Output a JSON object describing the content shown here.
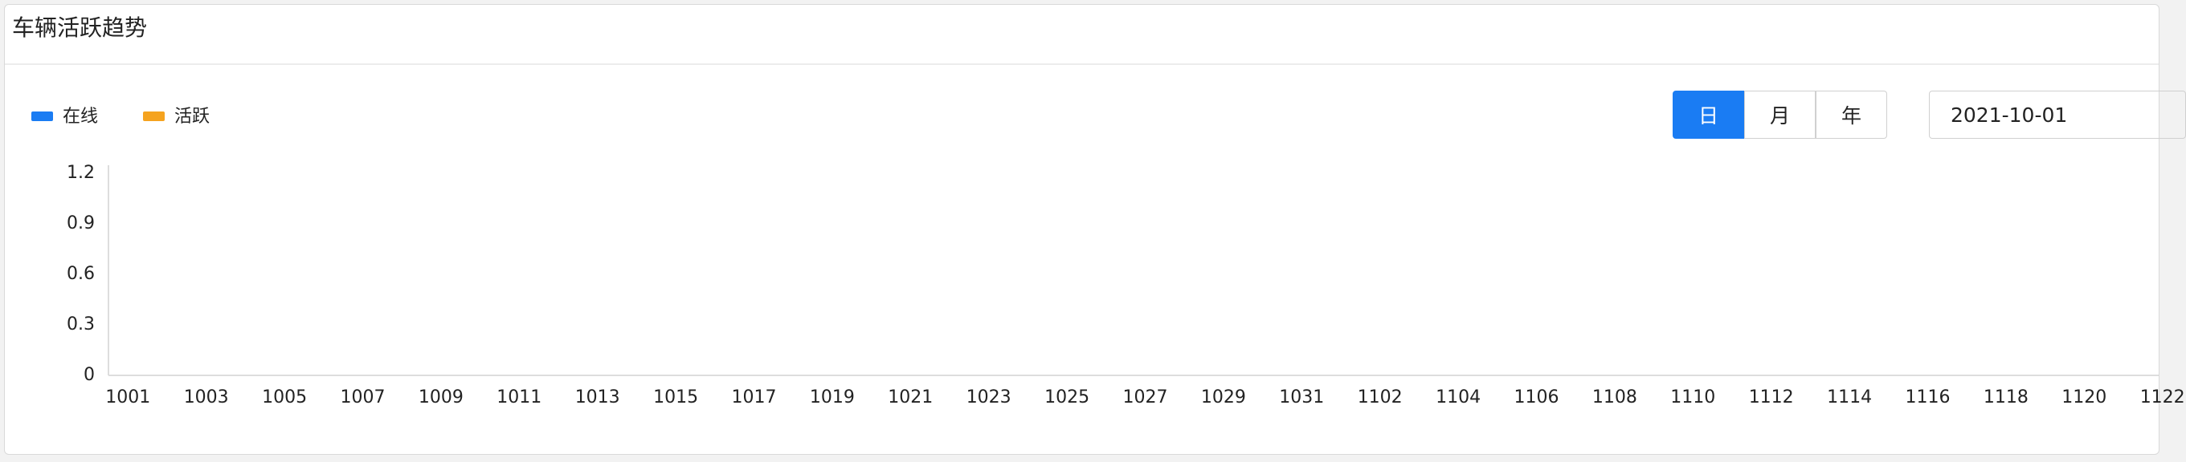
{
  "chart_data": {
    "type": "bar",
    "title": "车辆活跃趋势",
    "categories": [
      "1001",
      "1003",
      "1005",
      "1007",
      "1009",
      "1011",
      "1013",
      "1015",
      "1017",
      "1019",
      "1021",
      "1023",
      "1025",
      "1027",
      "1029",
      "1031",
      "1102",
      "1104",
      "1106",
      "1108",
      "1110",
      "1112",
      "1114",
      "1116",
      "1118",
      "1120",
      "1122"
    ],
    "series": [
      {
        "name": "在线",
        "color": "#1a7cf3",
        "values": [
          null,
          null,
          null,
          null,
          null,
          null,
          null,
          null,
          null,
          null,
          null,
          null,
          null,
          null,
          null,
          null,
          null,
          null,
          null,
          null,
          null,
          null,
          null,
          null,
          null,
          null,
          null
        ]
      },
      {
        "name": "活跃",
        "color": "#f5a31f",
        "values": [
          null,
          null,
          null,
          null,
          null,
          null,
          null,
          null,
          null,
          null,
          null,
          null,
          null,
          null,
          null,
          null,
          null,
          null,
          null,
          null,
          null,
          null,
          null,
          null,
          null,
          null,
          null
        ]
      }
    ],
    "ylim": [
      0,
      1.2
    ],
    "yticks": [
      0,
      0.3,
      0.6,
      0.9,
      1.2
    ],
    "grid": false,
    "controls": {
      "periods": [
        "日",
        "月",
        "年"
      ],
      "active": 0,
      "date": "2021-10-01"
    }
  }
}
